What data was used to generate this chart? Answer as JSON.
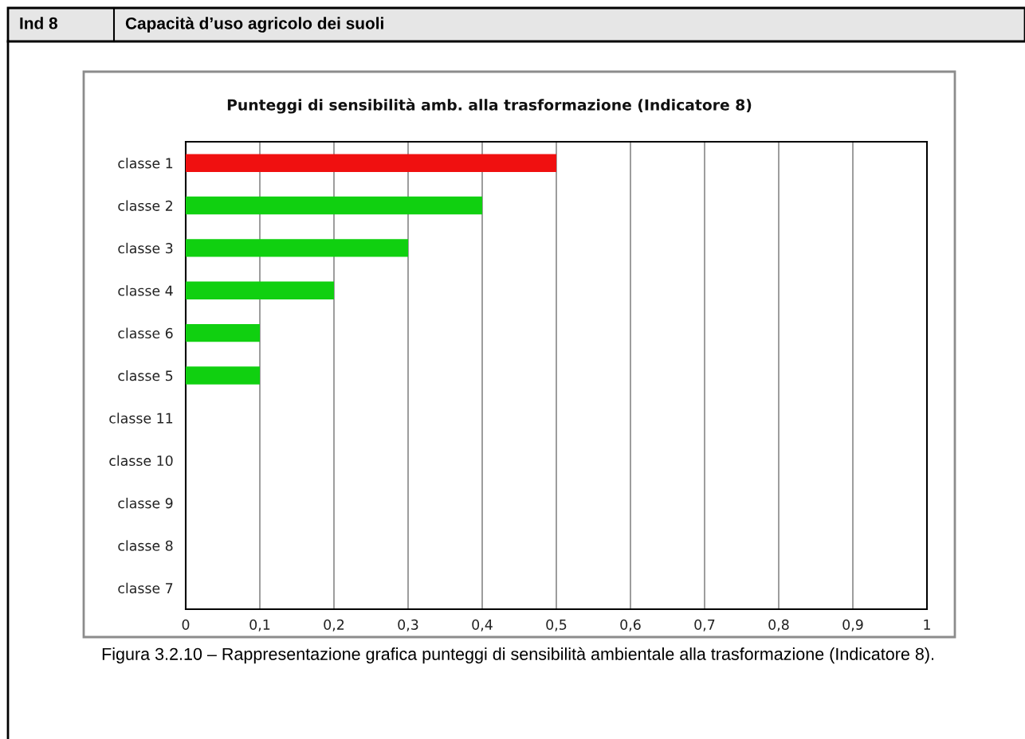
{
  "chart_data": {
    "type": "bar",
    "orientation": "horizontal",
    "title": "Punteggi di sensibilità amb. alla trasformazione (Indicatore 8)",
    "categories": [
      "classe 1",
      "classe 2",
      "classe 3",
      "classe 4",
      "classe 6",
      "classe 5",
      "classe 11",
      "classe 10",
      "classe 9",
      "classe 8",
      "classe 7"
    ],
    "values": [
      0.5,
      0.4,
      0.3,
      0.2,
      0.1,
      0.1,
      0,
      0,
      0,
      0,
      0
    ],
    "colors": [
      "#f01010",
      "#10d010",
      "#10d010",
      "#10d010",
      "#10d010",
      "#10d010",
      "#10d010",
      "#10d010",
      "#10d010",
      "#10d010",
      "#10d010"
    ],
    "xlim": [
      0,
      1
    ],
    "xticks": [
      0,
      {
        "value": 0.1,
        "label": "0,1"
      },
      {
        "value": 0.2,
        "label": "0,2"
      },
      {
        "value": 0.3,
        "label": "0,3"
      },
      {
        "value": 0.4,
        "label": "0,4"
      },
      {
        "value": 0.5,
        "label": "0,5"
      },
      {
        "value": 0.6,
        "label": "0,6"
      },
      {
        "value": 0.7,
        "label": "0,7"
      },
      {
        "value": 0.8,
        "label": "0,8"
      },
      {
        "value": 0.9,
        "label": "0,9"
      },
      1
    ],
    "grid": "x",
    "annotations": [
      "Ind 8",
      "Capacità d’uso agricolo dei suoli",
      "Figura 3.2.10 – Rappresentazione grafica punteggi di sensibilità ambientale alla trasformazione (Indicatore 8)."
    ]
  }
}
